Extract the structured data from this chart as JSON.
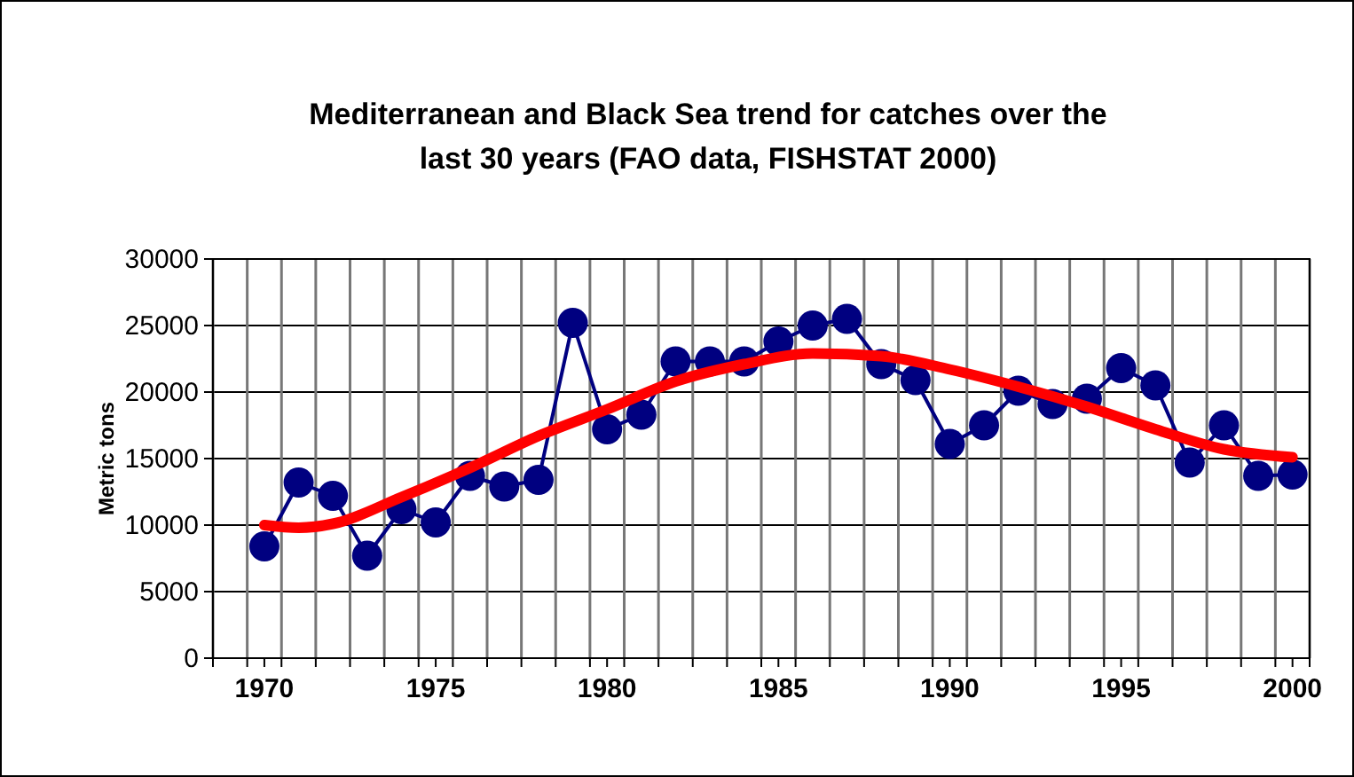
{
  "chart_data": {
    "type": "line",
    "title": "Mediterranean and Black Sea trend for catches over the last 30 years (FAO data, FISHSTAT 2000)",
    "ylabel": "Metric tons",
    "x": [
      1970,
      1971,
      1972,
      1973,
      1974,
      1975,
      1976,
      1977,
      1978,
      1979,
      1980,
      1981,
      1982,
      1983,
      1984,
      1985,
      1986,
      1987,
      1988,
      1989,
      1990,
      1991,
      1992,
      1993,
      1994,
      1995,
      1996,
      1997,
      1998,
      1999,
      2000
    ],
    "series": [
      {
        "color": "#000080",
        "marker": "circle",
        "values": [
          8400,
          13200,
          12200,
          7700,
          11200,
          10200,
          13700,
          12900,
          13400,
          25200,
          17200,
          18300,
          22300,
          22300,
          22300,
          23800,
          25000,
          25500,
          22100,
          20900,
          16100,
          17500,
          20100,
          19100,
          19500,
          21800,
          20500,
          14700,
          17500,
          13700,
          13800
        ]
      },
      {
        "type": "line",
        "color": "#ff0000",
        "marker": "none",
        "x": [
          1970,
          1971,
          1972,
          1974,
          1976,
          1978,
          1980,
          1982,
          1984,
          1986,
          1988,
          1990,
          1992,
          1994,
          1996,
          1998,
          2000
        ],
        "values": [
          10000,
          9800,
          10100,
          12100,
          14300,
          16700,
          18700,
          20800,
          22100,
          22900,
          22700,
          21700,
          20400,
          18900,
          17200,
          15700,
          15100
        ]
      }
    ],
    "xlim": [
      1968.5,
      2000.5
    ],
    "xticks": [
      1970,
      1975,
      1980,
      1985,
      1990,
      1995,
      2000,
      {
        "value": 1968.5,
        "label": null
      },
      {
        "value": 1969.5,
        "label": null
      },
      {
        "value": 1970.5,
        "label": null
      },
      {
        "value": 1971.5,
        "label": null
      },
      {
        "value": 1972.5,
        "label": null
      },
      {
        "value": 1973.5,
        "label": null
      },
      {
        "value": 1974.5,
        "label": null
      },
      {
        "value": 1975.5,
        "label": null
      },
      {
        "value": 1976.5,
        "label": null
      },
      {
        "value": 1977.5,
        "label": null
      },
      {
        "value": 1978.5,
        "label": null
      },
      {
        "value": 1979.5,
        "label": null
      },
      {
        "value": 1980.5,
        "label": null
      },
      {
        "value": 1981.5,
        "label": null
      },
      {
        "value": 1982.5,
        "label": null
      },
      {
        "value": 1983.5,
        "label": null
      },
      {
        "value": 1984.5,
        "label": null
      },
      {
        "value": 1985.5,
        "label": null
      },
      {
        "value": 1986.5,
        "label": null
      },
      {
        "value": 1987.5,
        "label": null
      },
      {
        "value": 1988.5,
        "label": null
      },
      {
        "value": 1989.5,
        "label": null
      },
      {
        "value": 1990.5,
        "label": null
      },
      {
        "value": 1991.5,
        "label": null
      },
      {
        "value": 1992.5,
        "label": null
      },
      {
        "value": 1993.5,
        "label": null
      },
      {
        "value": 1994.5,
        "label": null
      },
      {
        "value": 1995.5,
        "label": null
      },
      {
        "value": 1996.5,
        "label": null
      },
      {
        "value": 1997.5,
        "label": null
      },
      {
        "value": 1998.5,
        "label": null
      },
      {
        "value": 1999.5,
        "label": null
      },
      {
        "value": 2000.5,
        "label": null
      }
    ],
    "ylim": [
      0,
      30000
    ],
    "yticks": [
      0,
      5000,
      10000,
      15000,
      20000,
      25000,
      30000
    ],
    "grid": "xy"
  }
}
